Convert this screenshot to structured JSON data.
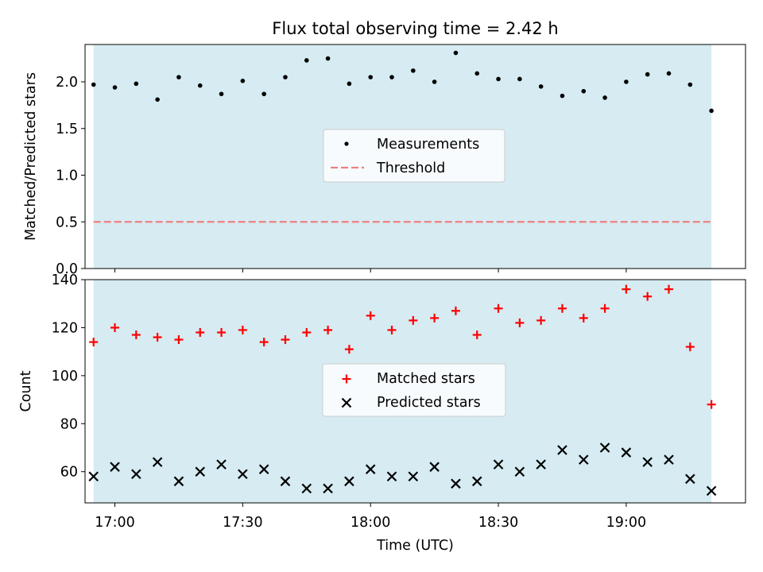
{
  "chart_data": [
    {
      "type": "scatter",
      "title": "Flux total observing time = 2.42 h",
      "xlabel": "",
      "ylabel": "Matched/Predicted stars",
      "ylim": [
        0.0,
        2.4
      ],
      "yticks": [
        "0.0",
        "0.5",
        "1.0",
        "1.5",
        "2.0"
      ],
      "xlim": [
        "16:53",
        "19:28"
      ],
      "shaded_span": [
        "16:55",
        "19:20"
      ],
      "shade_color": "#add8e6",
      "legend_position": "center",
      "series": [
        {
          "name": "Measurements",
          "marker": "dot",
          "color": "#000000",
          "x": [
            "16:55",
            "17:00",
            "17:05",
            "17:10",
            "17:15",
            "17:20",
            "17:25",
            "17:30",
            "17:35",
            "17:40",
            "17:45",
            "17:50",
            "17:55",
            "18:00",
            "18:05",
            "18:10",
            "18:15",
            "18:20",
            "18:25",
            "18:30",
            "18:35",
            "18:40",
            "18:45",
            "18:50",
            "18:55",
            "19:00",
            "19:05",
            "19:10",
            "19:15",
            "19:20"
          ],
          "y": [
            1.97,
            1.94,
            1.98,
            1.81,
            2.05,
            1.96,
            1.87,
            2.01,
            1.87,
            2.05,
            2.23,
            2.25,
            1.98,
            2.05,
            2.05,
            2.12,
            2.0,
            2.31,
            2.09,
            2.03,
            2.03,
            1.95,
            1.85,
            1.9,
            1.83,
            2.0,
            2.08,
            2.09,
            1.97,
            1.69
          ]
        },
        {
          "name": "Threshold",
          "line_style": "dashed",
          "color": "#f08080",
          "y": 0.5
        }
      ]
    },
    {
      "type": "scatter",
      "title": "",
      "xlabel": "Time (UTC)",
      "ylabel": "Count",
      "ylim": [
        47,
        140
      ],
      "yticks": [
        "60",
        "80",
        "100",
        "120",
        "140"
      ],
      "xlim": [
        "16:53",
        "19:28"
      ],
      "xticks": [
        "17:00",
        "17:30",
        "18:00",
        "18:30",
        "19:00"
      ],
      "shaded_span": [
        "16:55",
        "19:20"
      ],
      "shade_color": "#add8e6",
      "legend_position": "center",
      "x": [
        "16:55",
        "17:00",
        "17:05",
        "17:10",
        "17:15",
        "17:20",
        "17:25",
        "17:30",
        "17:35",
        "17:40",
        "17:45",
        "17:50",
        "17:55",
        "18:00",
        "18:05",
        "18:10",
        "18:15",
        "18:20",
        "18:25",
        "18:30",
        "18:35",
        "18:40",
        "18:45",
        "18:50",
        "18:55",
        "19:00",
        "19:05",
        "19:10",
        "19:15",
        "19:20"
      ],
      "series": [
        {
          "name": "Matched stars",
          "marker": "plus",
          "color": "#ff0000",
          "values": [
            114,
            120,
            117,
            116,
            115,
            118,
            118,
            119,
            114,
            115,
            118,
            119,
            111,
            125,
            119,
            123,
            124,
            127,
            117,
            128,
            122,
            123,
            128,
            124,
            128,
            136,
            133,
            136,
            112,
            88
          ]
        },
        {
          "name": "Predicted stars",
          "marker": "x",
          "color": "#000000",
          "values": [
            58,
            62,
            59,
            64,
            56,
            60,
            63,
            59,
            61,
            56,
            53,
            53,
            56,
            61,
            58,
            58,
            62,
            55,
            56,
            63,
            60,
            63,
            69,
            65,
            70,
            68,
            64,
            65,
            57,
            52
          ]
        }
      ]
    }
  ]
}
